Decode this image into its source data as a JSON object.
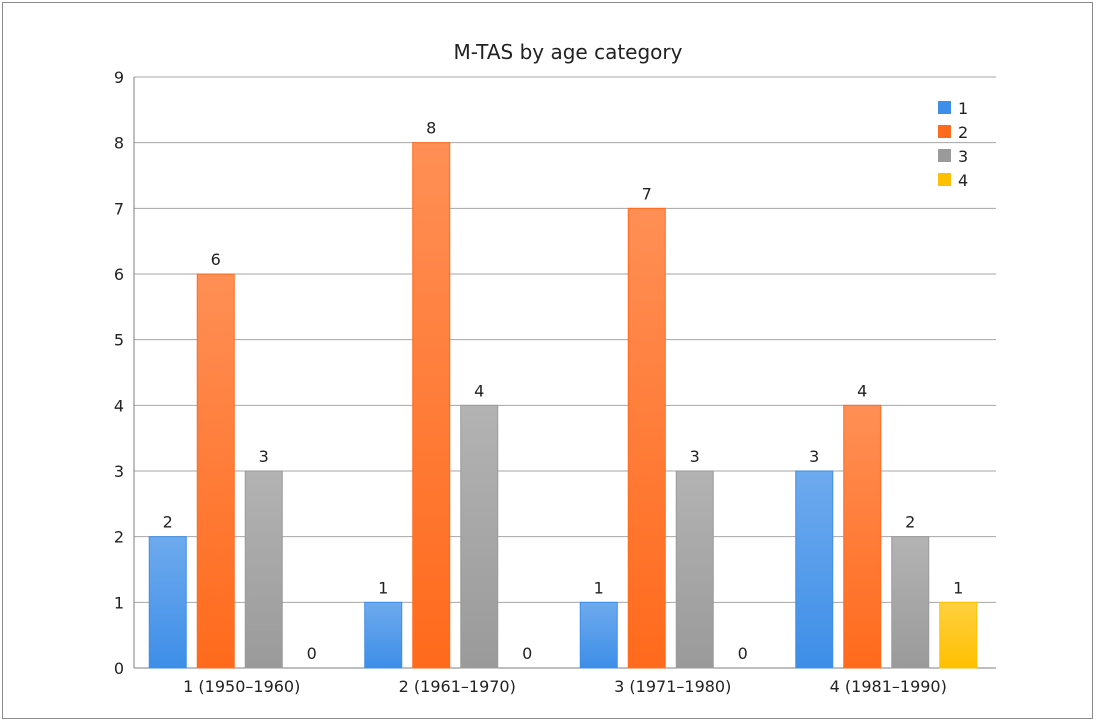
{
  "chart_data": {
    "type": "bar",
    "title": "M-TAS by age category",
    "xlabel": "",
    "ylabel": "",
    "ylim": [
      0,
      9
    ],
    "yticks": [
      0,
      1,
      2,
      3,
      4,
      5,
      6,
      7,
      8,
      9
    ],
    "grid": true,
    "legend_position": "top-right",
    "categories": [
      "1 (1950–1960)",
      "2 (1961–1970)",
      "3 (1971–1980)",
      "4 (1981–1990)"
    ],
    "series": [
      {
        "name": "1",
        "color": "#3d8ee8",
        "values": [
          2,
          1,
          1,
          3
        ]
      },
      {
        "name": "2",
        "color": "#ff6a1c",
        "values": [
          6,
          8,
          7,
          4
        ]
      },
      {
        "name": "3",
        "color": "#9a9a9a",
        "values": [
          3,
          4,
          3,
          2
        ]
      },
      {
        "name": "4",
        "color": "#ffc000",
        "values": [
          0,
          0,
          0,
          1
        ]
      }
    ]
  }
}
